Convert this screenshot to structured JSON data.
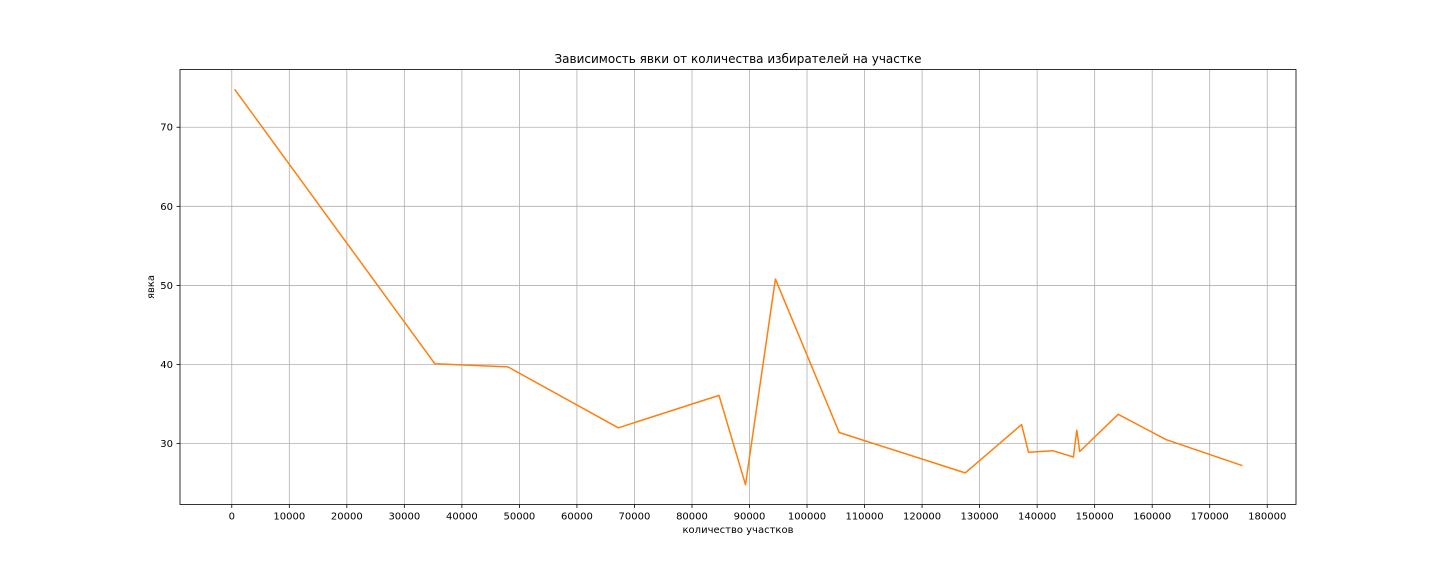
{
  "chart_data": {
    "type": "line",
    "title": "Зависимость явки от количества избирателей на участке",
    "xlabel": "количество участков",
    "ylabel": "явка",
    "xlim": [
      -9000,
      185000
    ],
    "ylim": [
      22.3,
      77.3
    ],
    "x_ticks": [
      0,
      10000,
      20000,
      30000,
      40000,
      50000,
      60000,
      70000,
      80000,
      90000,
      100000,
      110000,
      120000,
      130000,
      140000,
      150000,
      160000,
      170000,
      180000
    ],
    "x_tick_labels": [
      "0",
      "10000",
      "20000",
      "30000",
      "40000",
      "50000",
      "60000",
      "70000",
      "80000",
      "90000",
      "100000",
      "110000",
      "120000",
      "130000",
      "140000",
      "150000",
      "160000",
      "170000",
      "180000"
    ],
    "y_ticks": [
      30,
      40,
      50,
      60,
      70
    ],
    "y_tick_labels": [
      "30",
      "40",
      "50",
      "60",
      "70"
    ],
    "grid": true,
    "color": "#ff7f0e",
    "series": [
      {
        "x": [
          500,
          35300,
          48000,
          67200,
          84700,
          89300,
          94500,
          105600,
          127500,
          137300,
          138500,
          142700,
          146300,
          146900,
          147400,
          154100,
          162400,
          175700
        ],
        "y": [
          74.8,
          40.1,
          39.7,
          32.0,
          36.1,
          24.8,
          50.8,
          31.4,
          26.3,
          32.4,
          28.9,
          29.1,
          28.3,
          31.7,
          29.0,
          33.7,
          30.5,
          27.2
        ]
      }
    ]
  }
}
